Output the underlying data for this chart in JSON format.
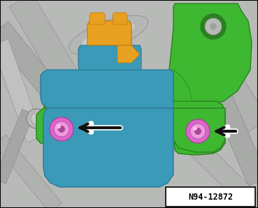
{
  "fig_w": 3.69,
  "fig_h": 2.98,
  "dpi": 100,
  "bg_gray": "#b8bab8",
  "green": "#3db830",
  "green_dark": "#2a8020",
  "blue": "#3a9ab8",
  "blue_dark": "#2a7a98",
  "orange": "#e8a020",
  "orange_dark": "#b87810",
  "pink": "#dd66cc",
  "pink_light": "#ee99dd",
  "pink_dark": "#aa4499",
  "arrow_black": "#111111",
  "arrow_white": "#ffffff",
  "pipe_gray": "#a8aaa8",
  "pipe_light": "#c8cac8",
  "pipe_dark": "#888a88",
  "label_text": "N94-12872",
  "label_fontsize": 8.5
}
